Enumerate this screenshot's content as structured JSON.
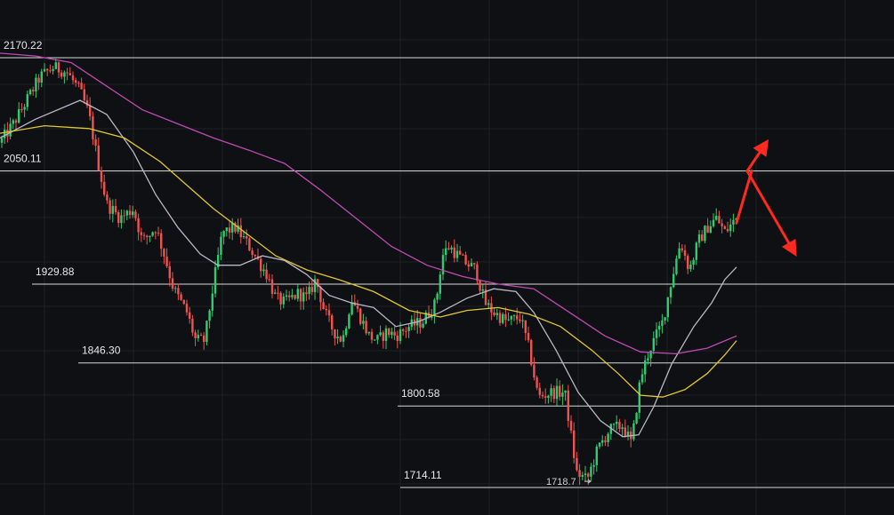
{
  "chart_data": {
    "type": "candlestick",
    "y_range": [
      1690,
      2210
    ],
    "x_range": [
      0,
      1005
    ],
    "grid": true,
    "colors": {
      "background": "#0f1013",
      "grid": "#1d1f24",
      "level_line": "#d8d8d8",
      "up": "#2ecc71",
      "down": "#f0524f",
      "ma_short": "#b8b8c8",
      "ma_mid": "#e2c830",
      "ma_long": "#c04ab4",
      "arrow": "#ff2a1f"
    },
    "levels": [
      {
        "label": "2170.22",
        "value": 2170.22,
        "x_start": 0
      },
      {
        "label": "2050.11",
        "value": 2050.11,
        "x_start": 0
      },
      {
        "label": "1929.88",
        "value": 1929.88,
        "x_start": 36
      },
      {
        "label": "1846.30",
        "value": 1846.3,
        "x_start": 88
      },
      {
        "label": "1800.58",
        "value": 1800.58,
        "x_start": 447
      },
      {
        "label": "1714.11",
        "value": 1714.11,
        "x_start": 450
      }
    ],
    "low_marker": {
      "label": "1718.7",
      "x": 660,
      "value": 1718.7
    },
    "price_path": [
      [
        0,
        2080
      ],
      [
        15,
        2100
      ],
      [
        30,
        2125
      ],
      [
        45,
        2150
      ],
      [
        60,
        2160
      ],
      [
        75,
        2155
      ],
      [
        90,
        2135
      ],
      [
        100,
        2110
      ],
      [
        110,
        2060
      ],
      [
        120,
        2015
      ],
      [
        135,
        2000
      ],
      [
        150,
        2010
      ],
      [
        160,
        1975
      ],
      [
        175,
        1990
      ],
      [
        185,
        1960
      ],
      [
        195,
        1925
      ],
      [
        210,
        1900
      ],
      [
        220,
        1870
      ],
      [
        230,
        1870
      ],
      [
        240,
        1930
      ],
      [
        250,
        1985
      ],
      [
        265,
        1990
      ],
      [
        280,
        1970
      ],
      [
        290,
        1955
      ],
      [
        300,
        1940
      ],
      [
        310,
        1915
      ],
      [
        320,
        1910
      ],
      [
        335,
        1920
      ],
      [
        345,
        1915
      ],
      [
        355,
        1935
      ],
      [
        365,
        1900
      ],
      [
        375,
        1880
      ],
      [
        385,
        1870
      ],
      [
        395,
        1915
      ],
      [
        405,
        1895
      ],
      [
        415,
        1875
      ],
      [
        425,
        1870
      ],
      [
        435,
        1880
      ],
      [
        445,
        1875
      ],
      [
        460,
        1885
      ],
      [
        475,
        1890
      ],
      [
        490,
        1910
      ],
      [
        497,
        1960
      ],
      [
        505,
        1970
      ],
      [
        520,
        1955
      ],
      [
        535,
        1945
      ],
      [
        545,
        1910
      ],
      [
        555,
        1900
      ],
      [
        570,
        1890
      ],
      [
        585,
        1895
      ],
      [
        595,
        1860
      ],
      [
        605,
        1810
      ],
      [
        620,
        1815
      ],
      [
        635,
        1815
      ],
      [
        648,
        1730
      ],
      [
        660,
        1722
      ],
      [
        672,
        1755
      ],
      [
        685,
        1775
      ],
      [
        700,
        1780
      ],
      [
        710,
        1760
      ],
      [
        720,
        1830
      ],
      [
        730,
        1860
      ],
      [
        745,
        1890
      ],
      [
        755,
        1935
      ],
      [
        765,
        1975
      ],
      [
        775,
        1945
      ],
      [
        785,
        1975
      ],
      [
        795,
        1990
      ],
      [
        805,
        2000
      ],
      [
        815,
        1985
      ],
      [
        828,
        2000
      ]
    ],
    "ma_short": [
      [
        0,
        2085
      ],
      [
        40,
        2105
      ],
      [
        90,
        2125
      ],
      [
        120,
        2110
      ],
      [
        150,
        2070
      ],
      [
        175,
        2025
      ],
      [
        200,
        1990
      ],
      [
        225,
        1962
      ],
      [
        245,
        1950
      ],
      [
        270,
        1950
      ],
      [
        295,
        1960
      ],
      [
        320,
        1955
      ],
      [
        345,
        1940
      ],
      [
        370,
        1918
      ],
      [
        395,
        1910
      ],
      [
        420,
        1905
      ],
      [
        445,
        1885
      ],
      [
        470,
        1890
      ],
      [
        495,
        1900
      ],
      [
        525,
        1915
      ],
      [
        555,
        1925
      ],
      [
        580,
        1922
      ],
      [
        600,
        1900
      ],
      [
        625,
        1860
      ],
      [
        650,
        1815
      ],
      [
        675,
        1785
      ],
      [
        700,
        1768
      ],
      [
        718,
        1770
      ],
      [
        735,
        1800
      ],
      [
        755,
        1845
      ],
      [
        780,
        1885
      ],
      [
        800,
        1910
      ],
      [
        815,
        1935
      ],
      [
        828,
        1948
      ]
    ],
    "ma_mid": [
      [
        0,
        2090
      ],
      [
        50,
        2098
      ],
      [
        100,
        2095
      ],
      [
        140,
        2085
      ],
      [
        180,
        2060
      ],
      [
        210,
        2035
      ],
      [
        240,
        2010
      ],
      [
        275,
        1985
      ],
      [
        310,
        1960
      ],
      [
        345,
        1945
      ],
      [
        380,
        1935
      ],
      [
        420,
        1922
      ],
      [
        460,
        1902
      ],
      [
        495,
        1895
      ],
      [
        525,
        1902
      ],
      [
        560,
        1905
      ],
      [
        595,
        1898
      ],
      [
        630,
        1885
      ],
      [
        665,
        1860
      ],
      [
        695,
        1835
      ],
      [
        720,
        1812
      ],
      [
        745,
        1810
      ],
      [
        770,
        1818
      ],
      [
        795,
        1835
      ],
      [
        815,
        1855
      ],
      [
        828,
        1870
      ]
    ],
    "ma_long": [
      [
        0,
        2175
      ],
      [
        40,
        2172
      ],
      [
        80,
        2165
      ],
      [
        120,
        2140
      ],
      [
        160,
        2115
      ],
      [
        200,
        2100
      ],
      [
        240,
        2085
      ],
      [
        280,
        2072
      ],
      [
        320,
        2058
      ],
      [
        360,
        2030
      ],
      [
        400,
        2000
      ],
      [
        440,
        1970
      ],
      [
        480,
        1950
      ],
      [
        520,
        1938
      ],
      [
        560,
        1930
      ],
      [
        600,
        1925
      ],
      [
        640,
        1900
      ],
      [
        680,
        1875
      ],
      [
        720,
        1858
      ],
      [
        760,
        1856
      ],
      [
        795,
        1862
      ],
      [
        828,
        1875
      ]
    ],
    "arrows": [
      {
        "from": [
          828,
          1995
        ],
        "to": [
          845,
          2050
        ],
        "head": "none"
      },
      {
        "from": [
          840,
          2050
        ],
        "to": [
          860,
          2078
        ],
        "head": "end"
      },
      {
        "from": [
          840,
          2050
        ],
        "to": [
          892,
          1965
        ],
        "head": "end"
      }
    ]
  }
}
